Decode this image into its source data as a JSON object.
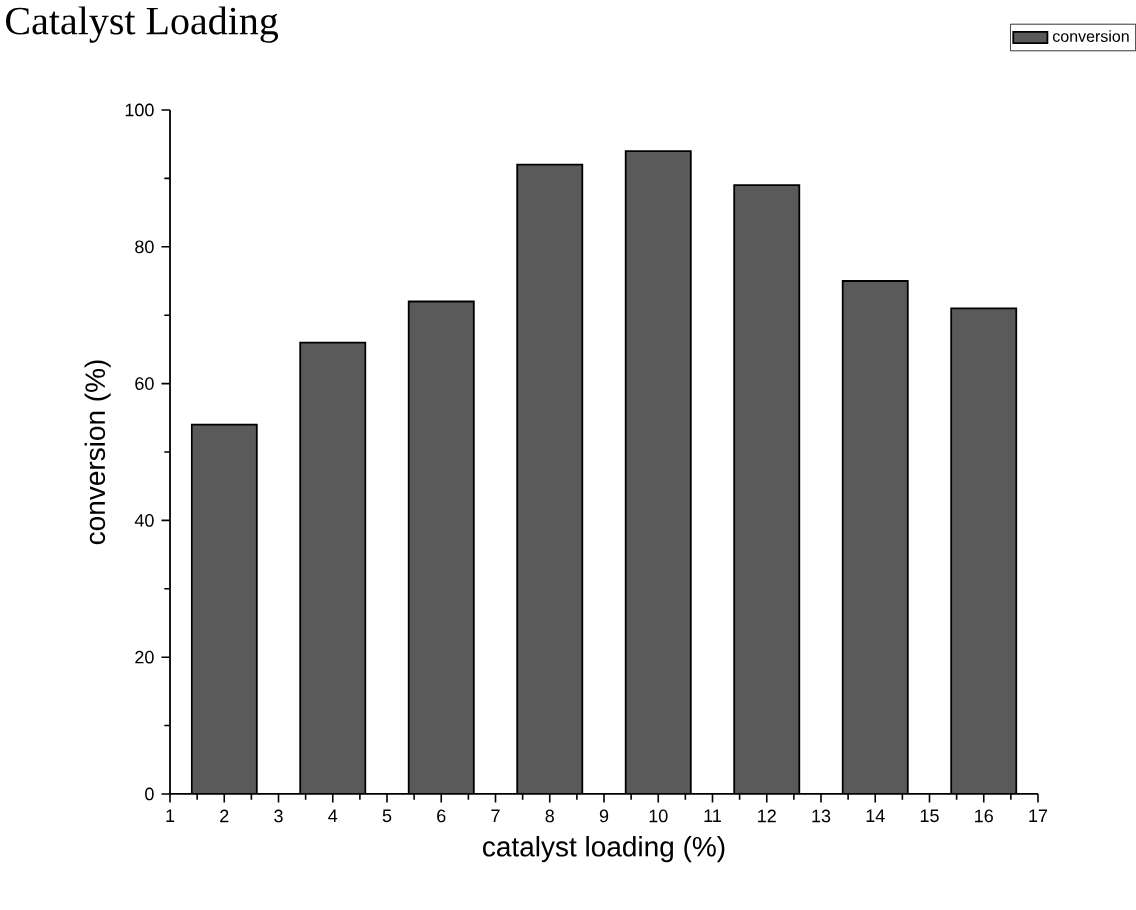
{
  "chart_data": {
    "type": "bar",
    "title": "Catalyst Loading",
    "xlabel": "catalyst loading (%)",
    "ylabel": "conversion (%)",
    "x": [
      2,
      4,
      6,
      8,
      10,
      12,
      14,
      16
    ],
    "series": [
      {
        "name": "conversion",
        "color": "#5a5a5a",
        "values": [
          54,
          66,
          72,
          92,
          94,
          89,
          75,
          71
        ]
      }
    ],
    "xlim": [
      1,
      17
    ],
    "ylim": [
      0,
      100
    ],
    "xticks": [
      1,
      2,
      3,
      4,
      5,
      6,
      7,
      8,
      9,
      10,
      11,
      12,
      13,
      14,
      15,
      16,
      17
    ],
    "yticks": [
      0,
      20,
      40,
      60,
      80,
      100
    ],
    "legend": "top right"
  }
}
